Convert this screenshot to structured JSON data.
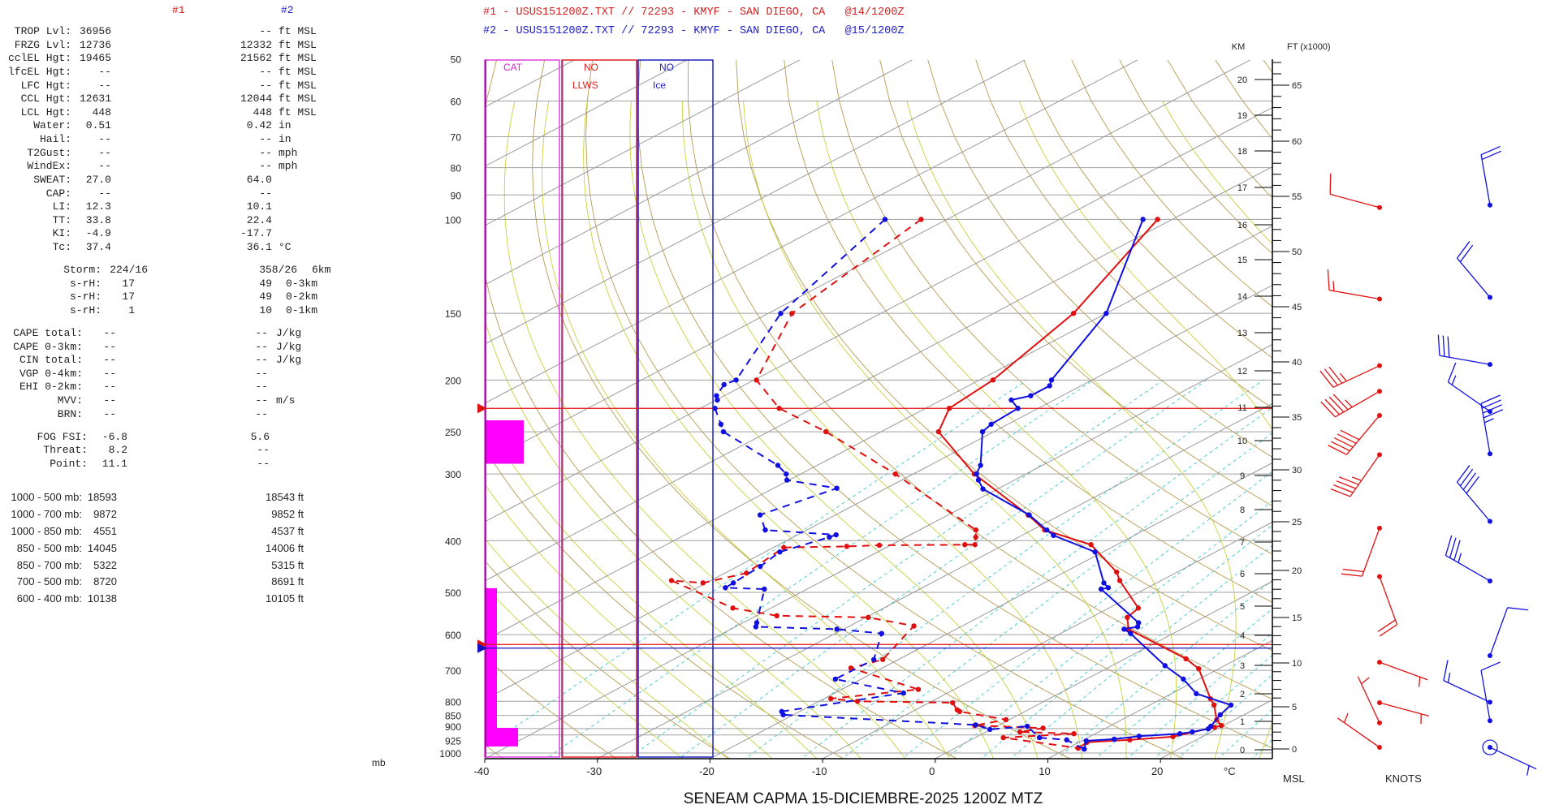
{
  "header": {
    "line1": "#1 - USUS151200Z.TXT // 72293 - KMYF - SAN DIEGO, CA   @14/1200Z",
    "line2": "#2 - USUS151200Z.TXT // 72293 - KMYF - SAN DIEGO, CA   @15/1200Z",
    "color1": "#d42020",
    "color2": "#2020c8"
  },
  "panel": {
    "col1_title": "#1",
    "col2_title": "#2",
    "indices": [
      {
        "label": "TROP Lvl:",
        "v1": "36956",
        "v2": "--",
        "unit": "ft MSL"
      },
      {
        "label": "FRZG Lvl:",
        "v1": "12736",
        "v2": "12332",
        "unit": "ft MSL"
      },
      {
        "label": "cclEL Hgt:",
        "v1": "19465",
        "v2": "21562",
        "unit": "ft MSL"
      },
      {
        "label": "lfcEL Hgt:",
        "v1": "--",
        "v2": "--",
        "unit": "ft MSL"
      },
      {
        "label": "LFC Hgt:",
        "v1": "--",
        "v2": "--",
        "unit": "ft MSL"
      },
      {
        "label": "CCL Hgt:",
        "v1": "12631",
        "v2": "12044",
        "unit": "ft MSL"
      },
      {
        "label": "LCL Hgt:",
        "v1": "448",
        "v2": "448",
        "unit": "ft MSL"
      },
      {
        "label": "Water:",
        "v1": "0.51",
        "v2": "0.42",
        "unit": "in"
      },
      {
        "label": "Hail:",
        "v1": "--",
        "v2": "--",
        "unit": "in"
      },
      {
        "label": "T2Gust:",
        "v1": "--",
        "v2": "--",
        "unit": "mph"
      },
      {
        "label": "WindEx:",
        "v1": "--",
        "v2": "--",
        "unit": "mph"
      },
      {
        "label": "SWEAT:",
        "v1": "27.0",
        "v2": "64.0",
        "unit": ""
      },
      {
        "label": "CAP:",
        "v1": "--",
        "v2": "--",
        "unit": ""
      },
      {
        "label": "LI:",
        "v1": "12.3",
        "v2": "10.1",
        "unit": ""
      },
      {
        "label": "TT:",
        "v1": "33.8",
        "v2": "22.4",
        "unit": ""
      },
      {
        "label": "KI:",
        "v1": "-4.9",
        "v2": "-17.7",
        "unit": ""
      },
      {
        "label": "Tc:",
        "v1": "37.4",
        "v2": "36.1",
        "unit": "°C"
      }
    ],
    "storm": [
      {
        "label": "Storm:",
        "v1": "224/16",
        "v2": "358/26",
        "unit": "6km"
      },
      {
        "label": "s-rH:",
        "v1": "17",
        "v2": "49",
        "unit": "0-3km"
      },
      {
        "label": "s-rH:",
        "v1": "17",
        "v2": "49",
        "unit": "0-2km"
      },
      {
        "label": "s-rH:",
        "v1": "1",
        "v2": "10",
        "unit": "0-1km"
      }
    ],
    "cape": [
      {
        "label": "CAPE total:",
        "v1": "--",
        "v2": "--",
        "unit": "J/kg"
      },
      {
        "label": "CAPE 0-3km:",
        "v1": "--",
        "v2": "--",
        "unit": "J/kg"
      },
      {
        "label": "CIN total:",
        "v1": "--",
        "v2": "--",
        "unit": "J/kg"
      },
      {
        "label": "VGP 0-4km:",
        "v1": "--",
        "v2": "--",
        "unit": ""
      },
      {
        "label": "EHI 0-2km:",
        "v1": "--",
        "v2": "--",
        "unit": ""
      },
      {
        "label": "MVV:",
        "v1": "--",
        "v2": "--",
        "unit": "m/s"
      },
      {
        "label": "BRN:",
        "v1": "--",
        "v2": "--",
        "unit": ""
      }
    ],
    "fog": [
      {
        "label": "FOG FSI:",
        "v1": "-6.8",
        "v2": "5.6"
      },
      {
        "label": "Threat:",
        "v1": "8.2",
        "v2": "--"
      },
      {
        "label": "Point:",
        "v1": "11.1",
        "v2": "--"
      }
    ],
    "thickness": [
      {
        "label": "1000 - 500 mb:",
        "v1": "18593",
        "v2": "18543 ft"
      },
      {
        "label": "1000 - 700 mb:",
        "v1": "9872",
        "v2": "9852 ft"
      },
      {
        "label": "1000 - 850 mb:",
        "v1": "4551",
        "v2": "4537 ft"
      },
      {
        "label": "850 - 500 mb:",
        "v1": "14045",
        "v2": "14006 ft"
      },
      {
        "label": "850 - 700 mb:",
        "v1": "5322",
        "v2": "5315 ft"
      },
      {
        "label": "700 - 500 mb:",
        "v1": "8720",
        "v2": "8691 ft"
      },
      {
        "label": "600 - 400 mb:",
        "v1": "10138",
        "v2": "10105 ft"
      }
    ]
  },
  "columns": {
    "cat": "CAT",
    "llws_status": "NO",
    "llws": "LLWS",
    "ice_status": "NO",
    "ice": "Ice",
    "cat_color": "#ff00ff"
  },
  "footer_title": "SENEAM CAPMA 15-DICIEMBRE-2025  1200Z  MTZ",
  "chart_data": {
    "type": "line",
    "subtype": "skew-T log-p",
    "title": "SENEAM CAPMA 15-DICIEMBRE-2025  1200Z  MTZ",
    "xlabel": "°C",
    "ylabel": "mb",
    "xlim": [
      -40,
      30
    ],
    "ylim": [
      1025,
      50
    ],
    "pressure_ticks": [
      "50",
      "60",
      "70",
      "80",
      "90",
      "100",
      "150",
      "200",
      "250",
      "300",
      "400",
      "500",
      "600",
      "700",
      "800",
      "850",
      "900",
      "925",
      "1000"
    ],
    "temp_ticks": [
      "-40",
      "-30",
      "-20",
      "-10",
      "0",
      "10",
      "20"
    ],
    "degc_label": "°C",
    "mb_label": "mb",
    "km_title": "KM",
    "ft_title": "FT (x1000)",
    "msl_label": "MSL",
    "knots_label": "KNOTS",
    "km_ticks": [
      "0",
      "1",
      "2",
      "3",
      "4",
      "5",
      "6",
      "7",
      "8",
      "9",
      "10",
      "11",
      "12",
      "13",
      "14",
      "15",
      "16",
      "17",
      "18",
      "19",
      "20"
    ],
    "ft_ticks": [
      "0",
      "5",
      "10",
      "15",
      "20",
      "25",
      "30",
      "35",
      "40",
      "45",
      "50",
      "55",
      "60",
      "65"
    ],
    "tropopause_p": 226,
    "freezing_level_p": [
      626,
      636
    ],
    "cat_layers": [
      {
        "p_top": 238,
        "p_bottom": 287,
        "level": 2
      },
      {
        "p_top": 491,
        "p_bottom": 972,
        "level": 1
      },
      {
        "p_top": 897,
        "p_bottom": 972,
        "level": 2
      }
    ],
    "series": [
      {
        "name": "#1 Temperature",
        "color": "#e01010",
        "dashed": false,
        "p": [
          100,
          150,
          200,
          226,
          250,
          300,
          358,
          382,
          407,
          458,
          475,
          535,
          557,
          586,
          666,
          695,
          791,
          813,
          866,
          888,
          895,
          932,
          945,
          955,
          979
        ],
        "t": [
          -71.3,
          -62.9,
          -58.8,
          -57.9,
          -54.9,
          -44.6,
          -32.9,
          -28.9,
          -22.3,
          -15.4,
          -13.7,
          -7.4,
          -6.8,
          -4.7,
          5.4,
          8.2,
          14.3,
          15.7,
          18.4,
          19.8,
          19.5,
          17.4,
          14.1,
          10.7,
          10.9
        ]
      },
      {
        "name": "#1 Dewpoint",
        "color": "#e01010",
        "dashed": true,
        "p": [
          100,
          150,
          200,
          226,
          250,
          300,
          382,
          394,
          407,
          407,
          408,
          410,
          412,
          460,
          480,
          475,
          535,
          553,
          557,
          578,
          668,
          693,
          760,
          791,
          800,
          805,
          830,
          836,
          866,
          888,
          898,
          913,
          920,
          936,
          979
        ],
        "t": [
          -92.3,
          -87.9,
          -79.8,
          -73,
          -64.9,
          -51.6,
          -35,
          -33.8,
          -32.6,
          -33.5,
          -41,
          -43.7,
          -49.1,
          -48.1,
          -50.3,
          -53.5,
          -43.4,
          -38.2,
          -29.8,
          -24.3,
          -21.4,
          -22.8,
          -13.2,
          -19.4,
          -16.6,
          -7.9,
          -6.3,
          -5.8,
          -0.3,
          -2.1,
          4.4,
          3.0,
          8.1,
          2.5,
          10.9
        ]
      },
      {
        "name": "#2 Temperature",
        "color": "#1010e0",
        "dashed": false,
        "p": [
          100,
          150,
          200,
          205,
          214,
          218,
          226,
          242,
          250,
          289,
          300,
          308,
          320,
          358,
          382,
          391,
          420,
          480,
          490,
          493,
          570,
          580,
          586,
          597,
          686,
          727,
          774,
          813,
          848,
          891,
          901,
          913,
          920,
          930,
          942,
          949,
          983
        ],
        "t": [
          -72.6,
          -60,
          -53.6,
          -52.8,
          -52.8,
          -53.8,
          -51.8,
          -51.5,
          -51,
          -45.5,
          -44.4,
          -43.2,
          -41.3,
          -32.8,
          -28.7,
          -27.2,
          -20.7,
          -14.7,
          -13.5,
          -13.9,
          -4.9,
          -4.3,
          -5.1,
          -3.8,
          4.7,
          8.6,
          12.2,
          17.2,
          17.9,
          19,
          19.2,
          18.3,
          17.5,
          14.3,
          12.6,
          10.4,
          11.6
        ]
      },
      {
        "name": "#2 Dewpoint",
        "color": "#1010e0",
        "dashed": true,
        "p": [
          100,
          150,
          200,
          204,
          214,
          218,
          226,
          242,
          250,
          289,
          300,
          308,
          319,
          358,
          382,
          390,
          394,
          420,
          447,
          480,
          490,
          493,
          570,
          580,
          586,
          597,
          668,
          727,
          772,
          836,
          848,
          886,
          903,
          891,
          936,
          945,
          983
        ],
        "t": [
          -95.5,
          -88.9,
          -81.6,
          -81.9,
          -80.7,
          -79.9,
          -78.7,
          -75.5,
          -74,
          -63.5,
          -61.3,
          -60.2,
          -54.4,
          -56.7,
          -53.7,
          -46.6,
          -46.8,
          -48.7,
          -48,
          -47.6,
          -47.5,
          -43.8,
          -38.8,
          -38.2,
          -30.6,
          -25.9,
          -22.2,
          -22.3,
          -13.9,
          -21.6,
          -20.9,
          -2.1,
          -0.1,
          2.7,
          5.7,
          8.5,
          11.6
        ]
      }
    ],
    "winds": [
      {
        "name": "#1 Wind",
        "color": "#e01010",
        "barbs": [
          {
            "p": 95,
            "dir": 285,
            "kt": 10
          },
          {
            "p": 141,
            "dir": 280,
            "kt": 15
          },
          {
            "p": 188,
            "dir": 245,
            "kt": 35
          },
          {
            "p": 210,
            "dir": 240,
            "kt": 45
          },
          {
            "p": 233,
            "dir": 220,
            "kt": 50
          },
          {
            "p": 276,
            "dir": 215,
            "kt": 45
          },
          {
            "p": 379,
            "dir": 200,
            "kt": 20
          },
          {
            "p": 467,
            "dir": 160,
            "kt": 20
          },
          {
            "p": 676,
            "dir": 110,
            "kt": 5
          },
          {
            "p": 805,
            "dir": 105,
            "kt": 5
          },
          {
            "p": 878,
            "dir": 335,
            "kt": 5
          },
          {
            "p": 976,
            "dir": 305,
            "kt": 5
          }
        ]
      },
      {
        "name": "#2 Wind",
        "color": "#1010e0",
        "barbs": [
          {
            "p": 94,
            "dir": 350,
            "kt": 20
          },
          {
            "p": 140,
            "dir": 320,
            "kt": 20
          },
          {
            "p": 187,
            "dir": 280,
            "kt": 30
          },
          {
            "p": 229,
            "dir": 305,
            "kt": 15
          },
          {
            "p": 275,
            "dir": 350,
            "kt": 45
          },
          {
            "p": 368,
            "dir": 320,
            "kt": 40
          },
          {
            "p": 476,
            "dir": 300,
            "kt": 35
          },
          {
            "p": 657,
            "dir": 20,
            "kt": 10
          },
          {
            "p": 803,
            "dir": 295,
            "kt": 15
          },
          {
            "p": 870,
            "dir": 350,
            "kt": 10
          },
          {
            "p": 976,
            "dir": 115,
            "kt": 5,
            "circle": true
          }
        ]
      }
    ]
  }
}
